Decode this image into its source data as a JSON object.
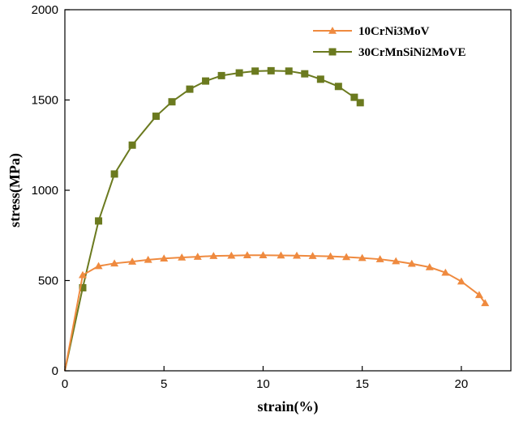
{
  "chart_data": {
    "type": "line",
    "title": "",
    "xlabel": "strain(%)",
    "ylabel": "stress(MPa)",
    "xlim": [
      0,
      22.5
    ],
    "ylim": [
      0,
      2000
    ],
    "xticks": [
      0,
      5,
      10,
      15,
      20
    ],
    "yticks": [
      0,
      500,
      1000,
      1500,
      2000
    ],
    "grid": false,
    "legend_position": "top-right",
    "series": [
      {
        "name": "10CrNi3MoV",
        "color": "#ef8a3f",
        "marker": "triangle",
        "x": [
          0,
          0.9,
          1.7,
          2.5,
          3.4,
          4.2,
          5.0,
          5.9,
          6.7,
          7.5,
          8.4,
          9.2,
          10.0,
          10.9,
          11.7,
          12.5,
          13.4,
          14.2,
          15.0,
          15.9,
          16.7,
          17.5,
          18.4,
          19.2,
          20.0,
          20.9,
          21.2
        ],
        "y": [
          0,
          530,
          580,
          595,
          605,
          615,
          622,
          628,
          632,
          636,
          638,
          640,
          640,
          639,
          638,
          636,
          634,
          630,
          625,
          618,
          607,
          593,
          574,
          544,
          495,
          420,
          375
        ]
      },
      {
        "name": "30CrMnSiNi2MoVE",
        "color": "#6b7a1f",
        "marker": "square",
        "x": [
          0,
          0.9,
          1.7,
          2.5,
          3.4,
          4.6,
          5.4,
          6.3,
          7.1,
          7.9,
          8.8,
          9.6,
          10.4,
          11.3,
          12.1,
          12.9,
          13.8,
          14.6,
          14.9
        ],
        "y": [
          0,
          460,
          830,
          1090,
          1250,
          1410,
          1490,
          1560,
          1605,
          1635,
          1650,
          1660,
          1662,
          1660,
          1645,
          1615,
          1575,
          1515,
          1485
        ]
      }
    ]
  }
}
